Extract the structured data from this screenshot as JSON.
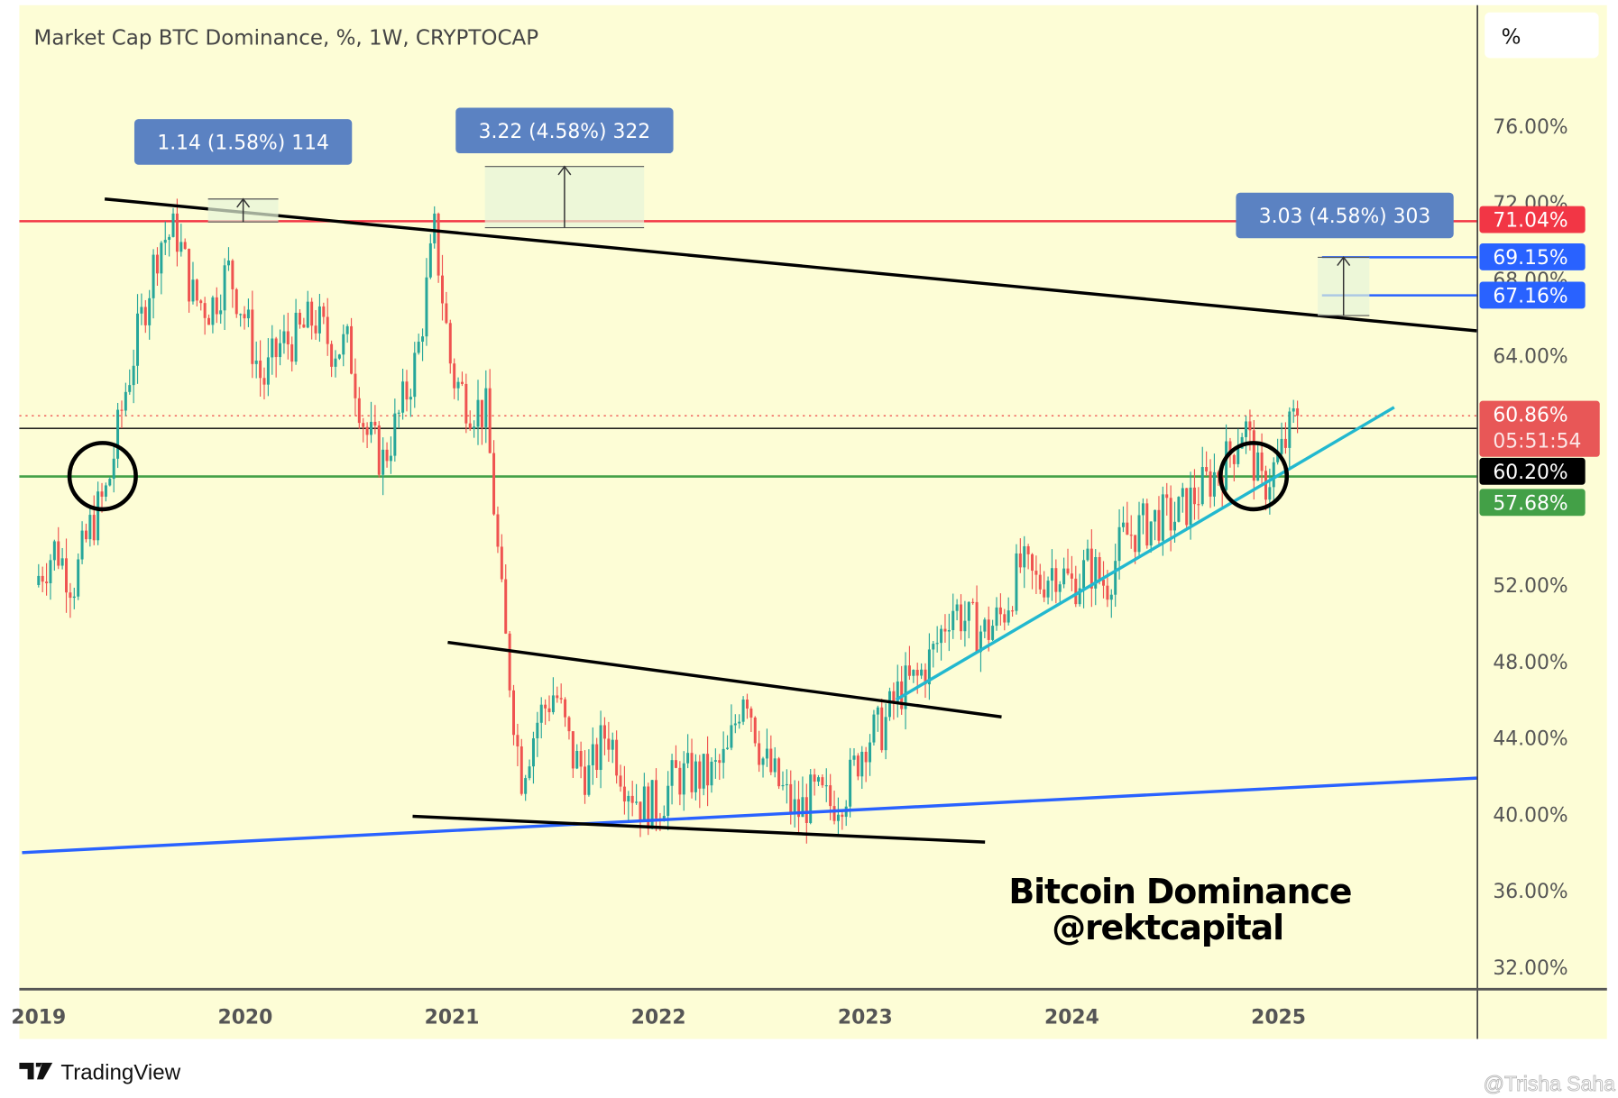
{
  "chart_data": {
    "type": "candlestick",
    "title": "Market Cap BTC Dominance, %, 1W, CRYPTOCAP",
    "ylim": [
      30,
      78
    ],
    "xlim": [
      2018.92,
      2025.96
    ],
    "y_scale_label": "%",
    "y_ticks": [
      "76.00%",
      "72.00%",
      "68.00%",
      "64.00%",
      "52.00%",
      "48.00%",
      "44.00%",
      "40.00%",
      "36.00%",
      "32.00%"
    ],
    "y_tick_values": [
      76,
      72,
      68,
      64,
      52,
      48,
      44,
      40,
      36,
      32
    ],
    "x_ticks": [
      "2019",
      "2020",
      "2021",
      "2022",
      "2023",
      "2024",
      "2025"
    ],
    "grid": false,
    "colors": {
      "background": "#fdfdd6",
      "up": "#26a69a",
      "down": "#ef5350"
    },
    "monthly_close_approx": {
      "start": 2019.0,
      "values": [
        52.5,
        54,
        52,
        55,
        57,
        62,
        66,
        70,
        70.5,
        67,
        66.5,
        68.5,
        66,
        62.5,
        64.5,
        65,
        66,
        64.5,
        64.5,
        60,
        58.5,
        61,
        64,
        70.5,
        63,
        61.5,
        61,
        50,
        42,
        45,
        46.5,
        43,
        42,
        44.5,
        42,
        40.5,
        40.5,
        42,
        42,
        42,
        43,
        47,
        43,
        41.5,
        40,
        41,
        40.5,
        41.5,
        44,
        44.5,
        46.5,
        47,
        48.5,
        51,
        50,
        49.5,
        50.5,
        53,
        52,
        53,
        52,
        53,
        52,
        54.5,
        55,
        55.5,
        55.5,
        56.5,
        57.5,
        58.5,
        60.5,
        57,
        58.5,
        60.86
      ]
    },
    "horizontal_levels": [
      {
        "value": 71.04,
        "label": "71.04%",
        "color": "#f23645"
      },
      {
        "value": 69.15,
        "label": "69.15%",
        "color": "#2962ff"
      },
      {
        "value": 67.16,
        "label": "67.16%",
        "color": "#2962ff"
      },
      {
        "value": 60.86,
        "label": "60.86%",
        "sublabel": "05:51:54",
        "color": "#ef5350",
        "style": "dotted"
      },
      {
        "value": 60.2,
        "label": "60.20%",
        "color": "#000000"
      },
      {
        "value": 57.68,
        "label": "57.68%",
        "color": "#43a047"
      }
    ],
    "trendlines": [
      {
        "name": "upper-descending-resistance",
        "from": [
          2019.32,
          72.2
        ],
        "to": [
          2025.96,
          65.3
        ],
        "color": "#000000"
      },
      {
        "name": "long-term-support",
        "from": [
          2018.92,
          38.0
        ],
        "to": [
          2025.96,
          41.9
        ],
        "color": "#2962ff"
      },
      {
        "name": "channel-top",
        "from": [
          2020.98,
          49.0
        ],
        "to": [
          2023.66,
          45.1
        ],
        "color": "#000000"
      },
      {
        "name": "channel-bottom",
        "from": [
          2020.81,
          39.9
        ],
        "to": [
          2023.58,
          38.55
        ],
        "color": "#000000"
      },
      {
        "name": "rising-support",
        "from": [
          2023.15,
          46.0
        ],
        "to": [
          2025.56,
          61.3
        ],
        "color": "#22b8cf"
      }
    ],
    "measurements": [
      {
        "label": "1.14 (1.58%) 114",
        "x": [
          2019.82,
          2020.16
        ],
        "y": [
          71.0,
          72.2
        ]
      },
      {
        "label": "3.22 (4.58%) 322",
        "x": [
          2021.16,
          2021.93
        ],
        "y": [
          70.7,
          73.9
        ]
      },
      {
        "label": "3.03 (4.58%) 303",
        "x": [
          2025.19,
          2025.44
        ],
        "y": [
          66.1,
          69.15
        ]
      }
    ],
    "circles": [
      {
        "center": [
          2019.31,
          57.7
        ]
      },
      {
        "center": [
          2024.88,
          57.7
        ]
      }
    ],
    "annotation": {
      "line1": "Bitcoin Dominance",
      "line2": "@rektcapital"
    }
  },
  "footer": {
    "brand": "TradingView",
    "watermark": "@Trisha Saha"
  }
}
